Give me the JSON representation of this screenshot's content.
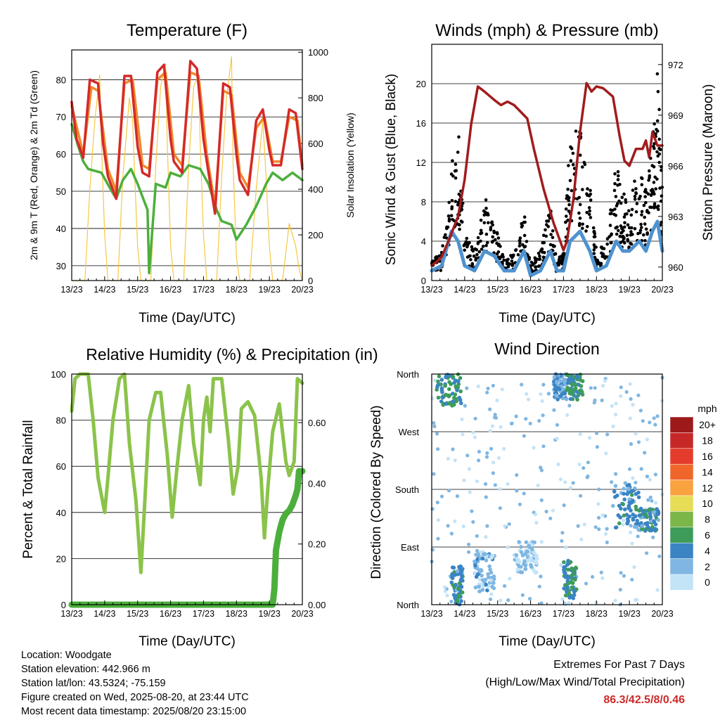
{
  "x_ticks": [
    "13/23",
    "14/23",
    "15/23",
    "16/23",
    "17/23",
    "18/23",
    "19/23",
    "20/23"
  ],
  "panels": {
    "temperature": {
      "title": "Temperature (F)",
      "xlabel": "Time (Day/UTC)",
      "ylabel_left": "2m & 9m T (Red, Orange) & 2m Td (Green)",
      "ylabel_right": "Solar Insolation (Yellow)",
      "left_ticks": [
        "30",
        "40",
        "50",
        "60",
        "70",
        "80"
      ],
      "right_ticks": [
        "0",
        "200",
        "400",
        "600",
        "800",
        "1000"
      ]
    },
    "winds": {
      "title": "Winds (mph) & Pressure (mb)",
      "xlabel": "Time (Day/UTC)",
      "ylabel_left": "Sonic Wind & Gust (Blue, Black)",
      "ylabel_right": "Station Pressure (Maroon)",
      "left_ticks": [
        "0",
        "4",
        "8",
        "12",
        "16",
        "20"
      ],
      "right_ticks": [
        "960",
        "963",
        "966",
        "969",
        "972"
      ]
    },
    "humidity": {
      "title": "Relative Humidity (%) & Precipitation (in)",
      "xlabel": "Time (Day/UTC)",
      "ylabel_left": "Percent & Total Rainfall",
      "left_ticks": [
        "0",
        "20",
        "40",
        "60",
        "80",
        "100"
      ],
      "right_ticks": [
        "0.00",
        "0.20",
        "0.40",
        "0.60"
      ]
    },
    "direction": {
      "title": "Wind Direction",
      "xlabel": "Time (Day/UTC)",
      "ylabel_left": "Direction (Colored By Speed)",
      "dir_ticks": [
        "North",
        "West",
        "South",
        "East",
        "North"
      ],
      "legend_title": "mph",
      "legend_labels": [
        "20+",
        "18",
        "16",
        "14",
        "12",
        "10",
        "8",
        "6",
        "4",
        "2",
        "0"
      ],
      "legend_colors": [
        "#9e1a1a",
        "#c62828",
        "#e53b2c",
        "#f0662a",
        "#f9a23f",
        "#e6dc55",
        "#7ab648",
        "#3d9c5a",
        "#3a84c4",
        "#7fb6e2",
        "#c3e3f7"
      ]
    }
  },
  "chart_data": [
    {
      "type": "line",
      "title": "Temperature (F)",
      "xlabel": "Time (Day/UTC)",
      "ylabel": "2m & 9m T (Red, Orange) & 2m Td (Green)",
      "y2label": "Solar Insolation (Yellow)",
      "x_unit": "days since 13/23",
      "ylim": [
        26,
        88
      ],
      "y2lim": [
        0,
        1010
      ],
      "series": [
        {
          "color": "#d42a2a",
          "axis": "left",
          "x": [
            0,
            0.15,
            0.35,
            0.55,
            0.8,
            0.95,
            1.1,
            1.35,
            1.6,
            1.8,
            2.0,
            2.15,
            2.35,
            2.6,
            2.8,
            3.0,
            3.1,
            3.35,
            3.6,
            3.8,
            4.0,
            4.1,
            4.35,
            4.6,
            4.8,
            5.0,
            5.1,
            5.35,
            5.6,
            5.8,
            6.0,
            6.1,
            6.35,
            6.6,
            6.8,
            7.0
          ],
          "y": [
            74,
            64,
            59,
            80,
            79,
            63,
            54,
            48,
            81,
            81,
            62,
            55,
            54,
            82,
            84,
            64,
            58,
            55,
            85,
            83,
            64,
            58,
            44,
            79,
            78,
            60,
            53,
            49,
            69,
            72,
            61,
            57,
            57,
            72,
            71,
            56
          ]
        },
        {
          "color": "#f08a2a",
          "axis": "left",
          "x": [
            0,
            0.35,
            0.6,
            0.8,
            1.1,
            1.35,
            1.6,
            1.85,
            2.15,
            2.35,
            2.6,
            2.85,
            3.1,
            3.35,
            3.6,
            3.85,
            4.1,
            4.35,
            4.6,
            4.85,
            5.1,
            5.35,
            5.6,
            5.85,
            6.1,
            6.35,
            6.6,
            6.85,
            7.0
          ],
          "y": [
            73,
            60,
            78,
            77,
            56,
            50,
            79,
            80,
            57,
            56,
            80,
            82,
            60,
            57,
            82,
            81,
            60,
            46,
            77,
            76,
            55,
            51,
            67,
            70,
            58,
            58,
            70,
            69,
            57
          ]
        },
        {
          "color": "#4caf3c",
          "axis": "left",
          "x": [
            0,
            0.2,
            0.35,
            0.5,
            0.9,
            1.15,
            1.35,
            1.55,
            1.8,
            2.0,
            2.3,
            2.35,
            2.55,
            2.85,
            3.0,
            3.3,
            3.55,
            3.9,
            4.15,
            4.4,
            4.55,
            4.85,
            5.0,
            5.3,
            5.6,
            5.9,
            6.1,
            6.4,
            6.7,
            7.0
          ],
          "y": [
            68,
            62,
            58,
            56,
            55,
            51,
            48,
            53,
            56,
            52,
            45,
            28,
            52,
            51,
            55,
            54,
            57,
            56,
            52,
            45,
            42,
            41,
            37,
            41,
            46,
            52,
            55,
            53,
            55,
            53
          ]
        },
        {
          "color": "#f5c842",
          "axis": "right",
          "x": [
            0,
            0.4,
            0.55,
            0.7,
            0.85,
            0.9,
            1.0,
            1.1,
            1.4,
            1.55,
            1.75,
            1.85,
            1.9,
            2.0,
            2.1,
            2.4,
            2.55,
            2.7,
            2.85,
            2.9,
            3.0,
            3.1,
            3.4,
            3.55,
            3.7,
            3.85,
            3.9,
            4.0,
            4.1,
            4.4,
            4.55,
            4.7,
            4.85,
            4.9,
            5.0,
            5.1,
            5.4,
            5.6,
            5.8,
            5.9,
            6.0,
            6.1,
            6.4,
            6.6,
            6.8,
            6.9,
            7.0
          ],
          "y": [
            0,
            0,
            400,
            700,
            900,
            600,
            200,
            0,
            0,
            450,
            800,
            700,
            500,
            150,
            0,
            0,
            500,
            850,
            950,
            600,
            150,
            0,
            0,
            500,
            850,
            900,
            600,
            200,
            0,
            0,
            450,
            800,
            980,
            500,
            100,
            0,
            0,
            400,
            700,
            450,
            150,
            0,
            0,
            250,
            150,
            50,
            0
          ]
        }
      ]
    },
    {
      "type": "scatter",
      "title": "Winds (mph) & Pressure (mb)",
      "xlabel": "Time (Day/UTC)",
      "ylabel": "Sonic Wind & Gust (Blue, Black)",
      "y2label": "Station Pressure (Maroon)",
      "x_unit": "days since 13/23",
      "ylim": [
        0,
        24
      ],
      "y2lim": [
        959.2,
        973.2
      ],
      "series": [
        {
          "color": "#a01c1c",
          "axis": "right",
          "style": "line",
          "x": [
            0,
            0.15,
            0.3,
            0.5,
            0.8,
            1.0,
            1.2,
            1.4,
            1.6,
            1.9,
            2.1,
            2.3,
            2.5,
            2.9,
            3.1,
            3.4,
            3.7,
            4.0,
            4.1,
            4.3,
            4.5,
            4.7,
            4.85,
            5.0,
            5.2,
            5.5,
            5.7,
            5.85,
            6.0,
            6.2,
            6.4,
            6.5,
            6.6,
            6.7,
            6.85,
            7.0
          ],
          "y": [
            960.1,
            960.3,
            960.6,
            961.5,
            963.0,
            965.2,
            968.5,
            970.7,
            970.4,
            969.9,
            969.6,
            969.8,
            969.6,
            968.8,
            967.0,
            964.6,
            962.6,
            961.0,
            961.5,
            964.0,
            968.0,
            970.9,
            970.4,
            970.7,
            970.6,
            970.1,
            967.8,
            966.3,
            966.0,
            967.0,
            967.0,
            967.5,
            966.5,
            968.0,
            967.2,
            967.2
          ]
        },
        {
          "color": "#000000",
          "axis": "left",
          "style": "points",
          "x": [
            0,
            0.3,
            0.6,
            0.8,
            1.0,
            1.3,
            1.6,
            1.9,
            2.2,
            2.5,
            2.8,
            3.0,
            3.3,
            3.6,
            3.8,
            4.0,
            4.2,
            4.5,
            4.8,
            5.0,
            5.3,
            5.6,
            5.8,
            6.0,
            6.3,
            6.5,
            6.7,
            6.85,
            7.0
          ],
          "y": [
            2,
            3,
            12,
            16,
            5,
            3,
            9,
            6,
            2,
            3,
            7,
            2,
            3,
            8,
            2,
            3,
            15,
            16,
            10,
            3,
            4,
            12,
            9,
            8,
            12,
            10,
            14,
            22,
            10
          ]
        },
        {
          "color": "#4f92cf",
          "axis": "left",
          "style": "line",
          "x": [
            0,
            0.3,
            0.6,
            0.8,
            1.0,
            1.3,
            1.6,
            1.9,
            2.2,
            2.5,
            2.8,
            3.0,
            3.3,
            3.6,
            3.8,
            4.0,
            4.2,
            4.5,
            4.8,
            5.0,
            5.3,
            5.6,
            5.8,
            6.0,
            6.3,
            6.5,
            6.7,
            6.85,
            7.0
          ],
          "y": [
            1,
            1.5,
            5,
            4,
            1.5,
            1,
            3,
            2.5,
            1,
            1,
            3,
            0.5,
            1,
            3,
            1,
            1,
            4,
            5,
            3,
            1,
            1.5,
            4,
            3,
            3,
            4,
            3,
            5,
            6,
            3
          ]
        }
      ]
    },
    {
      "type": "line",
      "title": "Relative Humidity (%) & Precipitation (in)",
      "xlabel": "Time (Day/UTC)",
      "ylabel": "Percent & Total Rainfall",
      "x_unit": "days since 13/23",
      "ylim": [
        0,
        100
      ],
      "y2lim": [
        0,
        0.76
      ],
      "series": [
        {
          "color": "#8bc34a",
          "axis": "left",
          "x": [
            0,
            0.1,
            0.25,
            0.5,
            0.65,
            0.8,
            1.0,
            1.1,
            1.25,
            1.45,
            1.6,
            1.75,
            1.95,
            2.1,
            2.2,
            2.35,
            2.55,
            2.7,
            2.9,
            3.05,
            3.2,
            3.35,
            3.55,
            3.7,
            3.9,
            4.0,
            4.1,
            4.2,
            4.3,
            4.55,
            4.75,
            4.9,
            5.05,
            5.15,
            5.35,
            5.55,
            5.75,
            5.85,
            5.95,
            6.1,
            6.3,
            6.5,
            6.6,
            6.75,
            6.85,
            7.0
          ],
          "y": [
            84,
            98,
            100,
            100,
            80,
            55,
            40,
            55,
            80,
            98,
            100,
            70,
            45,
            14,
            40,
            80,
            92,
            92,
            65,
            38,
            60,
            80,
            95,
            70,
            52,
            80,
            90,
            75,
            98,
            98,
            72,
            48,
            60,
            85,
            88,
            82,
            55,
            29,
            50,
            75,
            87,
            62,
            56,
            62,
            98,
            96
          ]
        },
        {
          "color": "#4caf3c",
          "axis": "right",
          "x": [
            0,
            6.1,
            6.15,
            6.2,
            6.3,
            6.4,
            6.5,
            6.6,
            6.7,
            6.8,
            6.85,
            6.9,
            7.0
          ],
          "y": [
            0,
            0,
            0.05,
            0.18,
            0.24,
            0.28,
            0.3,
            0.31,
            0.33,
            0.36,
            0.38,
            0.44,
            0.44
          ]
        }
      ]
    },
    {
      "type": "scatter",
      "title": "Wind Direction",
      "xlabel": "Time (Day/UTC)",
      "ylabel": "Direction (Colored By Speed)",
      "x_unit": "days since 13/23",
      "y_categories": [
        "North",
        "West",
        "South",
        "East",
        "North"
      ],
      "ylim_degrees": [
        0,
        360
      ],
      "clusters": [
        {
          "x0": 0.15,
          "x1": 0.9,
          "dir0": 310,
          "dir1": 360,
          "speed": 5
        },
        {
          "x0": 0.6,
          "x1": 0.95,
          "dir0": 0,
          "dir1": 60,
          "speed": 4
        },
        {
          "x0": 1.3,
          "x1": 1.9,
          "dir0": 20,
          "dir1": 80,
          "speed": 2
        },
        {
          "x0": 2.5,
          "x1": 3.2,
          "dir0": 50,
          "dir1": 100,
          "speed": 1
        },
        {
          "x0": 3.7,
          "x1": 4.1,
          "dir0": 320,
          "dir1": 360,
          "speed": 3
        },
        {
          "x0": 4.1,
          "x1": 4.6,
          "dir0": 320,
          "dir1": 360,
          "speed": 5
        },
        {
          "x0": 4.0,
          "x1": 4.4,
          "dir0": 10,
          "dir1": 70,
          "speed": 5
        },
        {
          "x0": 5.5,
          "x1": 6.3,
          "dir0": 120,
          "dir1": 190,
          "speed": 4
        },
        {
          "x0": 6.3,
          "x1": 6.9,
          "dir0": 115,
          "dir1": 150,
          "speed": 4
        }
      ]
    }
  ],
  "footer": {
    "location": "Location: Woodgate",
    "elevation": "Station elevation: 442.966 m",
    "latlon": "Station lat/lon: 43.5324; -75.159",
    "created": "Figure created on Wed, 2025-08-20, at 23:44 UTC",
    "recent": "Most recent data timestamp: 2025/08/20 23:15:00"
  },
  "extremes": {
    "title": "Extremes For Past 7 Days",
    "subtitle": "(High/Low/Max Wind/Total Precipitation)",
    "values": "86.3/42.5/8/0.46"
  }
}
